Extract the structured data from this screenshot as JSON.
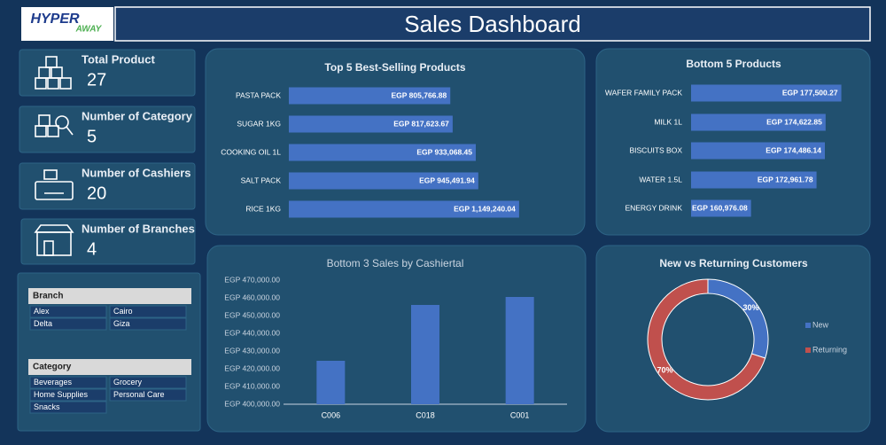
{
  "header": {
    "title": "Sales Dashboard",
    "logo": {
      "main": "HYPER",
      "sub": "AWAY"
    }
  },
  "kpis": [
    {
      "label": "Total Product",
      "value": 27
    },
    {
      "label": "Number of Category",
      "value": 5
    },
    {
      "label": "Number of Cashiers",
      "value": 20
    },
    {
      "label": "Number of Branches",
      "value": 4
    }
  ],
  "slicers": [
    {
      "title": "Branch",
      "items": [
        "Alex",
        "Cairo",
        "Delta",
        "Giza"
      ]
    },
    {
      "title": "Category",
      "items": [
        "Beverages",
        "Grocery",
        "Home Supplies",
        "Personal Care",
        "Snacks"
      ]
    }
  ],
  "chart_data": [
    {
      "type": "bar",
      "orientation": "horizontal",
      "title": "Top 5 Best-Selling Products",
      "categories": [
        "PASTA PACK",
        "SUGAR 1KG",
        "COOKING OIL 1L",
        "SALT PACK",
        "RICE 1KG"
      ],
      "values": [
        805766.88,
        817623.67,
        933068.45,
        945491.94,
        1149240.04
      ],
      "value_labels": [
        "EGP 805,766.88",
        "EGP 817,623.67",
        "EGP 933,068.45",
        "EGP 945,491.94",
        "EGP 1,149,240.04"
      ],
      "color": "#4472c4",
      "xlim": [
        0,
        1300000
      ]
    },
    {
      "type": "bar",
      "orientation": "horizontal",
      "title": "Bottom 5 Products",
      "categories": [
        "WAFER FAMILY PACK",
        "MILK 1L",
        "BISCUITS BOX",
        "WATER 1.5L",
        "ENERGY DRINK"
      ],
      "values": [
        177500.27,
        174622.85,
        174486.14,
        172961.78,
        160976.08
      ],
      "value_labels": [
        "EGP 177,500.27",
        "EGP 174,622.85",
        "EGP 174,486.14",
        "EGP 172,961.78",
        "EGP 160,976.08"
      ],
      "color": "#4472c4",
      "xlim": [
        150000,
        180000
      ]
    },
    {
      "type": "bar",
      "orientation": "vertical",
      "title": "Bottom 3 Sales by Cashiertal",
      "categories": [
        "C006",
        "C018",
        "C001"
      ],
      "values": [
        424500,
        456000,
        460500
      ],
      "color": "#4472c4",
      "ylim": [
        400000,
        470000
      ],
      "yticks": [
        {
          "value": 400000,
          "label": "EGP 400,000.00"
        },
        {
          "value": 410000,
          "label": "EGP 410,000.00"
        },
        {
          "value": 420000,
          "label": "EGP 420,000.00"
        },
        {
          "value": 430000,
          "label": "EGP 430,000.00"
        },
        {
          "value": 440000,
          "label": "EGP 440,000.00"
        },
        {
          "value": 450000,
          "label": "EGP 450,000.00"
        },
        {
          "value": 460000,
          "label": "EGP 460,000.00"
        },
        {
          "value": 470000,
          "label": "EGP 470,000.00"
        }
      ]
    },
    {
      "type": "donut",
      "title": "New vs Returning Customers",
      "categories": [
        "New",
        "Returning"
      ],
      "values": [
        30,
        70
      ],
      "value_labels": [
        "30%",
        "70%"
      ],
      "colors": [
        "#4472c4",
        "#c0504d"
      ]
    }
  ]
}
